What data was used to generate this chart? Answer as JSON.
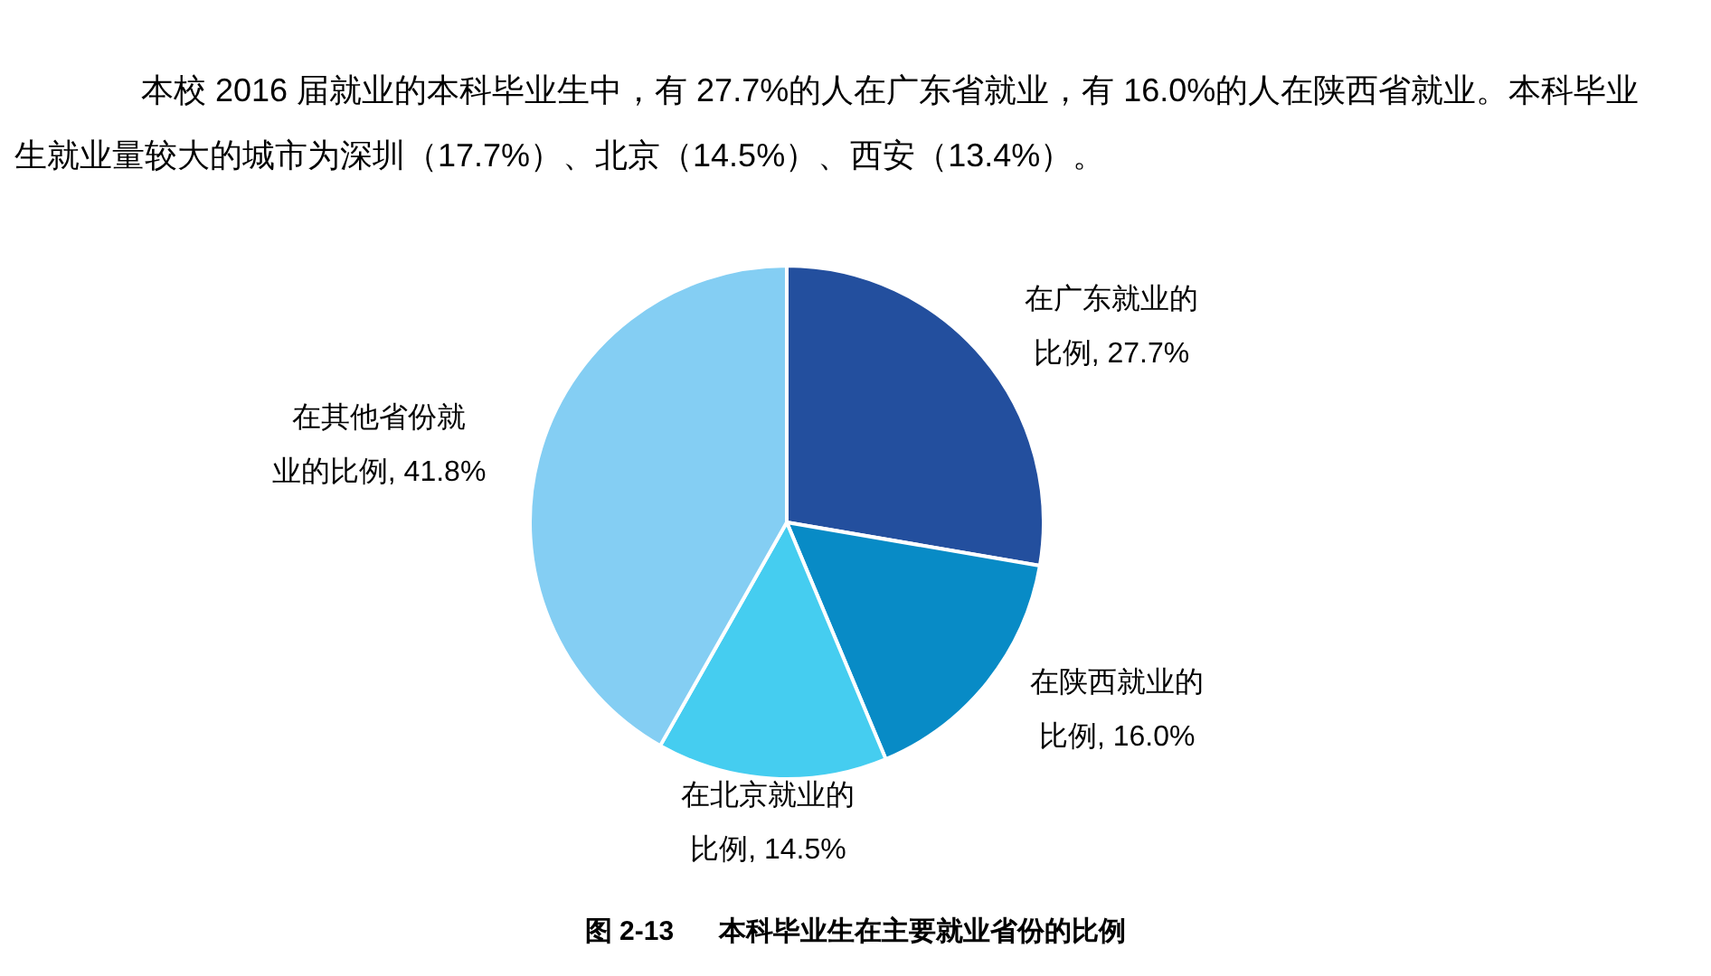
{
  "chart_data": {
    "type": "pie",
    "title": "图 2-13      本科毕业生在主要就业省份的比例",
    "subtitle": "本校 2016 届就业的本科毕业生中，有 27.7%的人在广东省就业，有 16.0%的人在陕西省就业。本科毕业生就业量较大的城市为深圳（17.7%）、北京（14.5%）、西安（13.4%）。",
    "categories": [
      "在广东就业的比例",
      "在陕西就业的比例",
      "在北京就业的比例",
      "在其他省份就业的比例"
    ],
    "values": [
      27.7,
      16.0,
      14.5,
      41.8
    ],
    "value_labels": [
      "27.7%",
      "16.0%",
      "14.5%",
      "41.8%"
    ],
    "colors": [
      "#234f9e",
      "#088bc6",
      "#45cdf0",
      "#84cef3"
    ],
    "legend": false
  }
}
